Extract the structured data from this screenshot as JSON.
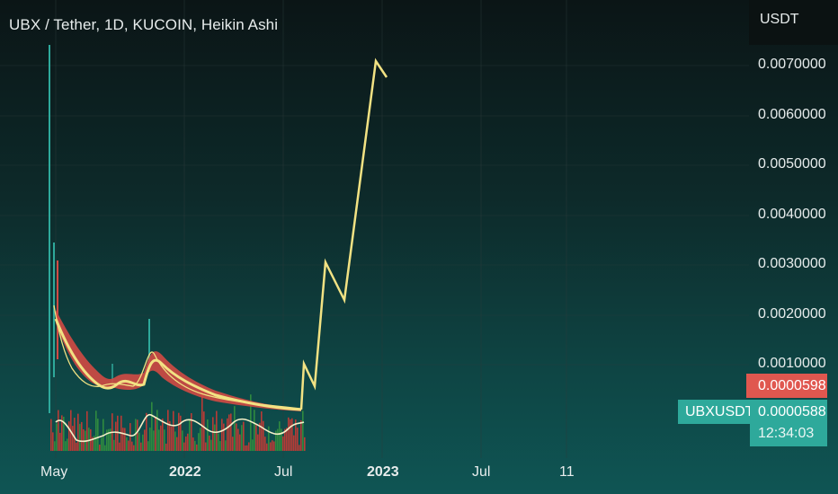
{
  "header": {
    "title": "UBX / Tether, 1D, KUCOIN, Heikin Ashi"
  },
  "price_axis": {
    "unit": "USDT"
  },
  "badges": {
    "price": "0.0000598",
    "symbol": "UBXUSDT",
    "last": "0.0000588",
    "countdown": "12:34:03"
  },
  "colors": {
    "price_badge": "#e0574f",
    "symbol_badge": "#2ea99b",
    "projection": "#f2e283",
    "ma_band_red": "#d24a44",
    "ma_line": "#f2e283",
    "volume_red": "#b83b36",
    "volume_green": "#2f8a3f",
    "candle_teal": "#2ea99b"
  },
  "chart_data": {
    "type": "line",
    "title": "UBX / Tether, 1D, KUCOIN, Heikin Ashi",
    "ylabel": "USDT",
    "ylim": [
      0,
      0.0075
    ],
    "yticks": [
      "0.0070000",
      "0.0060000",
      "0.0050000",
      "0.0040000",
      "0.0030000",
      "0.0020000",
      "0.0010000"
    ],
    "xticks": [
      "May",
      "2022",
      "Jul",
      "2023",
      "Jul",
      "11"
    ],
    "grid": true,
    "last_price": 5.98e-05,
    "series": [
      {
        "values_description": "price trend band",
        "x": [
          "2021-05-10",
          "2021-06-01",
          "2021-07-10",
          "2021-08-20",
          "2021-09-25",
          "2021-11-01",
          "2021-11-25",
          "2022-01-01",
          "2022-03-01",
          "2022-05-01",
          "2022-06-15",
          "2022-07-10"
        ],
        "y": [
          0.0022,
          0.0016,
          0.0011,
          0.0008,
          0.001,
          0.0007,
          0.0011,
          0.0006,
          0.00035,
          0.0002,
          0.0001,
          6e-05
        ]
      },
      {
        "values_description": "projection",
        "x": [
          "2022-07-10",
          "2022-07-20",
          "2022-08-05",
          "2022-09-01",
          "2022-10-01",
          "2022-11-08",
          "2022-11-20"
        ],
        "y": [
          6e-05,
          0.00095,
          0.00015,
          0.0029,
          0.0012,
          0.0071,
          0.0067
        ]
      }
    ]
  }
}
